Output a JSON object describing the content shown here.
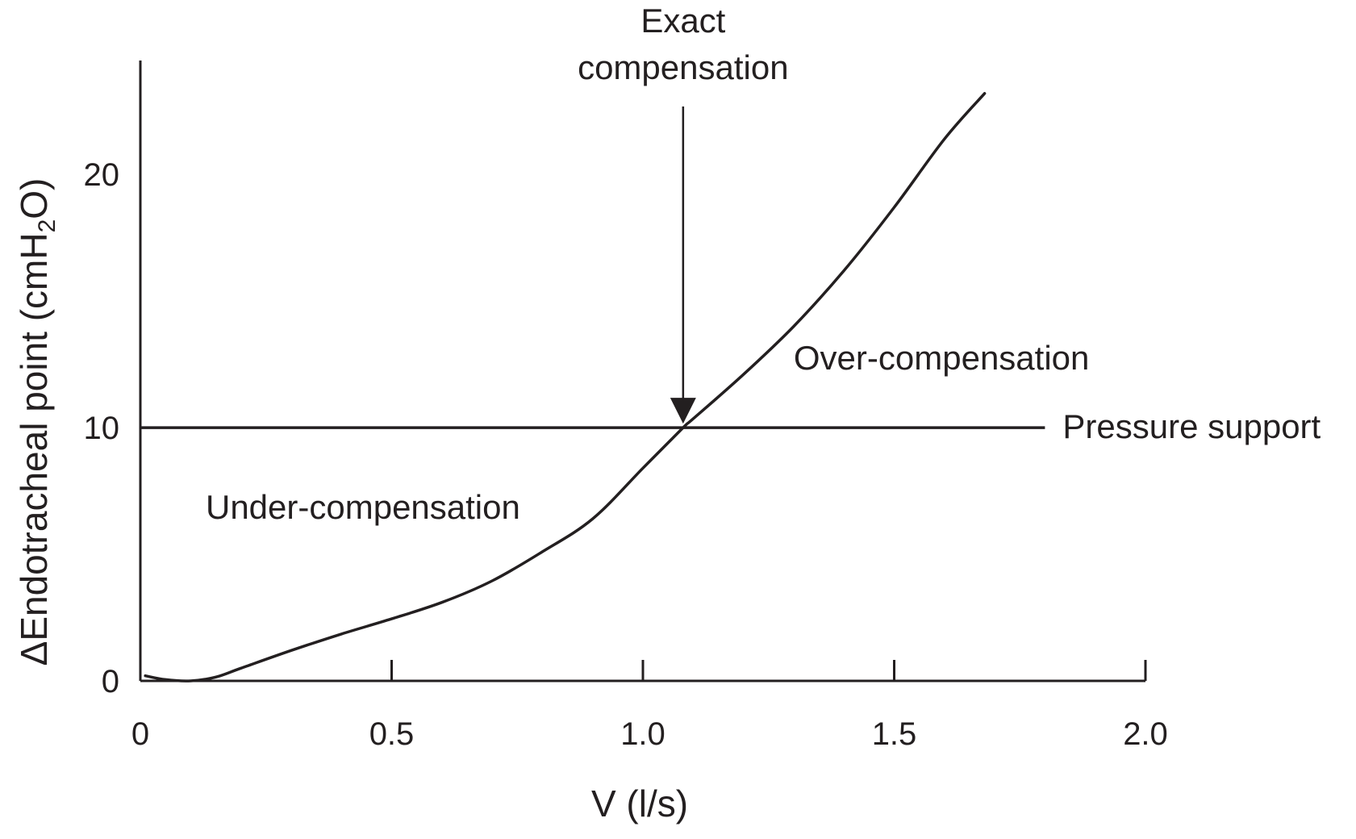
{
  "chart_data": {
    "type": "line",
    "title": "",
    "xlabel": "V (l/s)",
    "ylabel": {
      "prefix": "ΔEndotracheal point (cmH",
      "subscript": "2",
      "suffix": "O)"
    },
    "xlim": [
      0,
      2.0
    ],
    "ylim": [
      0,
      24.5
    ],
    "x_ticks": [
      {
        "value": 0,
        "label": "0"
      },
      {
        "value": 0.5,
        "label": "0.5"
      },
      {
        "value": 1.0,
        "label": "1.0"
      },
      {
        "value": 1.5,
        "label": "1.5"
      },
      {
        "value": 2.0,
        "label": "2.0"
      }
    ],
    "y_ticks": [
      {
        "value": 0,
        "label": "0"
      },
      {
        "value": 10,
        "label": "10"
      },
      {
        "value": 20,
        "label": "20"
      }
    ],
    "grid": false,
    "series": [
      {
        "x": [
          0.01,
          0.05,
          0.1,
          0.15,
          0.2,
          0.3,
          0.4,
          0.5,
          0.6,
          0.7,
          0.8,
          0.9,
          1.0,
          1.08,
          1.1,
          1.2,
          1.3,
          1.4,
          1.5,
          1.6,
          1.68
        ],
        "y": [
          0.2,
          0.05,
          0.0,
          0.15,
          0.5,
          1.2,
          1.85,
          2.45,
          3.1,
          3.95,
          5.1,
          6.4,
          8.4,
          10.0,
          10.35,
          12.1,
          14.0,
          16.2,
          18.7,
          21.4,
          23.2
        ]
      }
    ],
    "reference_line": {
      "y": 10,
      "x_start": 0,
      "x_end": 1.8,
      "label": "Pressure support"
    },
    "annotations": [
      {
        "id": "exact",
        "lines": [
          "Exact",
          "compensation"
        ],
        "x": 1.08,
        "y": 10,
        "arrow": true
      },
      {
        "id": "over",
        "text": "Over-compensation",
        "x": 1.3,
        "y": 12.3
      },
      {
        "id": "under",
        "text": "Under-compensation",
        "x": 0.13,
        "y": 6.4
      }
    ],
    "colors": {
      "ink": "#231f20",
      "background": "#ffffff"
    }
  }
}
